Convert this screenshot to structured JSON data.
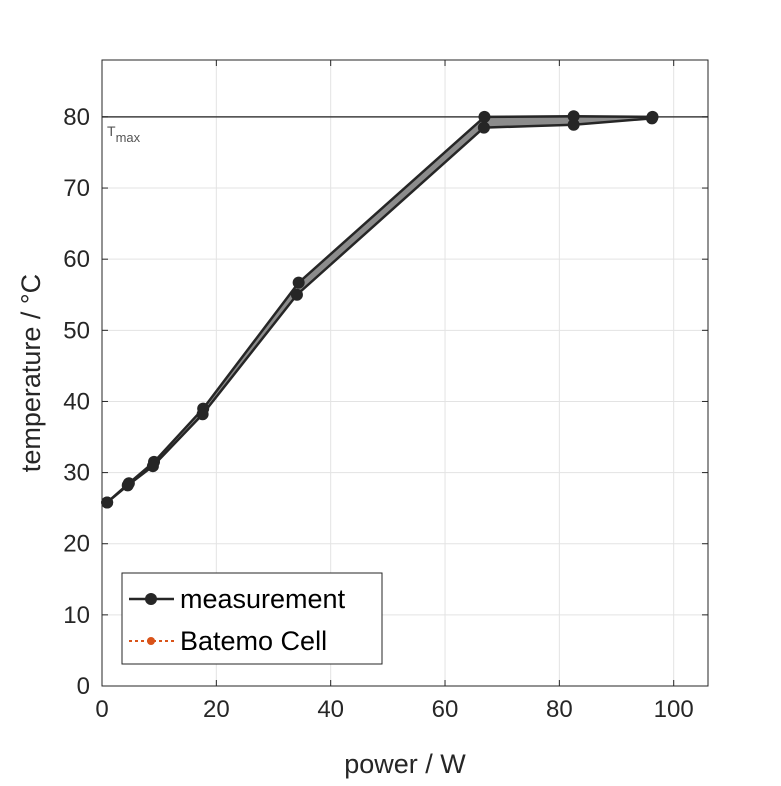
{
  "chart_data": {
    "type": "line",
    "xlabel": "power / W",
    "ylabel": "temperature / °C",
    "xlim": [
      0,
      106
    ],
    "ylim": [
      0,
      88
    ],
    "xticks": [
      0,
      20,
      40,
      60,
      80,
      100
    ],
    "yticks": [
      0,
      10,
      20,
      30,
      40,
      50,
      60,
      70,
      80
    ],
    "grid": true,
    "legend_position": "bottom-left",
    "reference_line": {
      "y": 80,
      "label": "T",
      "subscript": "max",
      "color": "#404040"
    },
    "band_color": "#8c8c8c",
    "series": [
      {
        "name": "measurement",
        "color": "#262626",
        "marker": "circle",
        "line_style": "solid",
        "upper": {
          "x": [
            0.9,
            4.7,
            9.1,
            17.7,
            34.4,
            66.9,
            82.5,
            96.3
          ],
          "y": [
            25.8,
            28.5,
            31.5,
            39.0,
            56.7,
            80.0,
            80.1,
            80.0
          ]
        },
        "lower": {
          "x": [
            0.9,
            4.5,
            8.9,
            17.6,
            34.1,
            66.8,
            82.5,
            96.2
          ],
          "y": [
            25.8,
            28.2,
            30.9,
            38.2,
            55.0,
            78.5,
            78.9,
            79.8
          ]
        }
      },
      {
        "name": "Batemo Cell",
        "color": "#d95319",
        "marker": "circle",
        "line_style": "dotted"
      }
    ]
  }
}
